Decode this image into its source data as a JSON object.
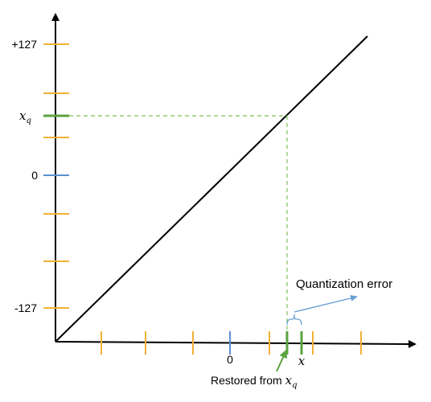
{
  "y_axis": {
    "label_top": "+127",
    "label_xq": "x",
    "label_xq_sub": "q",
    "label_zero": "0",
    "label_bottom": "-127"
  },
  "x_axis": {
    "label_zero": "0",
    "label_x": "x"
  },
  "annotations": {
    "quantization_error": "Quantization error",
    "restored_prefix": "Restored from ",
    "restored_var": "x",
    "restored_sub": "q"
  },
  "colors": {
    "axis": "#000000",
    "tick_orange": "#f2b134",
    "tick_blue": "#5b8fd0",
    "tick_green": "#5aa340",
    "guide_green": "#7fbf5a",
    "error_blue": "#6a9fd4"
  }
}
